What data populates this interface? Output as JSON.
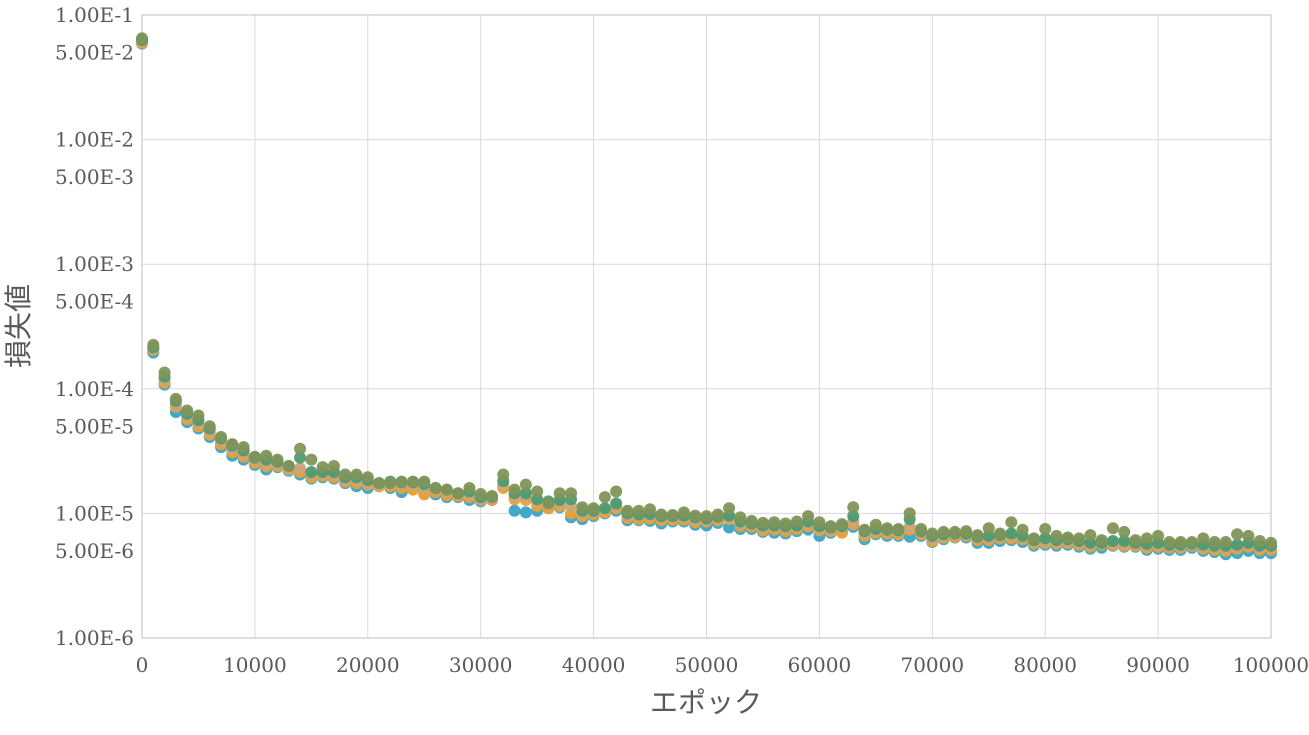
{
  "chart_data": {
    "type": "scatter",
    "title": "",
    "xlabel": "エポック",
    "ylabel": "損失値",
    "xlim": [
      0,
      100000
    ],
    "ylim": [
      1e-06,
      0.1
    ],
    "yscale": "log",
    "grid": true,
    "legend": "none",
    "x_ticks": [
      "0",
      "10000",
      "20000",
      "30000",
      "40000",
      "50000",
      "60000",
      "70000",
      "80000",
      "90000",
      "100000"
    ],
    "y_ticks": [
      {
        "value": 0.1,
        "label": "1.00E-1"
      },
      {
        "value": 0.05,
        "label": "5.00E-2"
      },
      {
        "value": 0.01,
        "label": "1.00E-2"
      },
      {
        "value": 0.005,
        "label": "5.00E-3"
      },
      {
        "value": 0.001,
        "label": "1.00E-3"
      },
      {
        "value": 0.0005,
        "label": "5.00E-4"
      },
      {
        "value": 0.0001,
        "label": "1.00E-4"
      },
      {
        "value": 5e-05,
        "label": "5.00E-5"
      },
      {
        "value": 1e-05,
        "label": "1.00E-5"
      },
      {
        "value": 5e-06,
        "label": "5.00E-6"
      },
      {
        "value": 1e-06,
        "label": "1.00E-6"
      }
    ],
    "x": [
      0,
      1000,
      2000,
      3000,
      4000,
      5000,
      6000,
      7000,
      8000,
      9000,
      10000,
      11000,
      12000,
      13000,
      14000,
      15000,
      16000,
      17000,
      18000,
      19000,
      20000,
      21000,
      22000,
      23000,
      24000,
      25000,
      26000,
      27000,
      28000,
      29000,
      30000,
      31000,
      32000,
      33000,
      34000,
      35000,
      36000,
      37000,
      38000,
      39000,
      40000,
      41000,
      42000,
      43000,
      44000,
      45000,
      46000,
      47000,
      48000,
      49000,
      50000,
      51000,
      52000,
      53000,
      54000,
      55000,
      56000,
      57000,
      58000,
      59000,
      60000,
      61000,
      62000,
      63000,
      64000,
      65000,
      66000,
      67000,
      68000,
      69000,
      70000,
      71000,
      72000,
      73000,
      74000,
      75000,
      76000,
      77000,
      78000,
      79000,
      80000,
      81000,
      82000,
      83000,
      84000,
      85000,
      86000,
      87000,
      88000,
      89000,
      90000,
      91000,
      92000,
      93000,
      94000,
      95000,
      96000,
      97000,
      98000,
      99000,
      100000
    ],
    "series": [
      {
        "color": "#3aa3c7",
        "values": [
          0.059,
          0.000195,
          0.000108,
          6.5e-05,
          5.4e-05,
          4.8e-05,
          4.1e-05,
          3.4e-05,
          2.9e-05,
          2.7e-05,
          2.45e-05,
          2.25e-05,
          2.35e-05,
          2.2e-05,
          2.05e-05,
          1.9e-05,
          1.95e-05,
          1.9e-05,
          1.75e-05,
          1.65e-05,
          1.6e-05,
          1.65e-05,
          1.6e-05,
          1.48e-05,
          1.58e-05,
          1.45e-05,
          1.42e-05,
          1.35e-05,
          1.35e-05,
          1.28e-05,
          1.25e-05,
          1.28e-05,
          1.65e-05,
          1.05e-05,
          1.02e-05,
          1.05e-05,
          1.1e-05,
          1.12e-05,
          9.3e-06,
          9e-06,
          9.5e-06,
          1e-05,
          1.05e-05,
          8.8e-06,
          8.8e-06,
          8.7e-06,
          8.3e-06,
          8.6e-06,
          8.6e-06,
          8.1e-06,
          8e-06,
          8.4e-06,
          7.7e-06,
          7.5e-06,
          7.5e-06,
          7.1e-06,
          7e-06,
          6.9e-06,
          7.2e-06,
          7.4e-06,
          6.6e-06,
          7e-06,
          7.2e-06,
          7.8e-06,
          6.2e-06,
          6.8e-06,
          6.6e-06,
          6.6e-06,
          6.5e-06,
          6.6e-06,
          5.9e-06,
          6.2e-06,
          6.4e-06,
          6.4e-06,
          5.8e-06,
          5.8e-06,
          6e-06,
          6.1e-06,
          5.9e-06,
          5.5e-06,
          5.6e-06,
          5.5e-06,
          5.6e-06,
          5.4e-06,
          5.2e-06,
          5.3e-06,
          5.5e-06,
          5.4e-06,
          5.4e-06,
          5.1e-06,
          5.2e-06,
          5.1e-06,
          5.1e-06,
          5.3e-06,
          5e-06,
          4.9e-06,
          4.7e-06,
          4.8e-06,
          5e-06,
          4.8e-06,
          4.8e-06
        ]
      },
      {
        "color": "#f0a030",
        "values": [
          0.06,
          0.000205,
          0.000112,
          7.2e-05,
          5.7e-05,
          5e-05,
          4.3e-05,
          3.6e-05,
          3.1e-05,
          2.85e-05,
          2.55e-05,
          2.4e-05,
          2.4e-05,
          2.25e-05,
          2.15e-05,
          1.95e-05,
          2e-05,
          1.95e-05,
          1.8e-05,
          1.75e-05,
          1.7e-05,
          1.65e-05,
          1.65e-05,
          1.6e-05,
          1.55e-05,
          1.42e-05,
          1.48e-05,
          1.4e-05,
          1.38e-05,
          1.35e-05,
          1.28e-05,
          1.28e-05,
          1.6e-05,
          1.3e-05,
          1.28e-05,
          1.15e-05,
          1.1e-05,
          1.15e-05,
          1e-05,
          9.5e-06,
          9.8e-06,
          1.02e-05,
          1.1e-05,
          9.2e-06,
          9e-06,
          9.1e-06,
          8.8e-06,
          8.9e-06,
          8.9e-06,
          8.5e-06,
          8.6e-06,
          8.8e-06,
          9e-06,
          7.9e-06,
          7.8e-06,
          7.3e-06,
          7.4e-06,
          7.2e-06,
          7.5e-06,
          7.9e-06,
          7.3e-06,
          7.2e-06,
          7e-06,
          8.2e-06,
          6.6e-06,
          7e-06,
          6.9e-06,
          6.8e-06,
          7.4e-06,
          6.8e-06,
          6e-06,
          6.4e-06,
          6.5e-06,
          6.6e-06,
          6.1e-06,
          6.1e-06,
          6.3e-06,
          6.3e-06,
          6.2e-06,
          5.7e-06,
          5.8e-06,
          5.7e-06,
          5.8e-06,
          5.6e-06,
          5.4e-06,
          5.6e-06,
          5.6e-06,
          5.5e-06,
          5.5e-06,
          5.3e-06,
          5.4e-06,
          5.3e-06,
          5.3e-06,
          5.5e-06,
          5.2e-06,
          5.1e-06,
          5e-06,
          5.2e-06,
          5.4e-06,
          5.1e-06,
          5.1e-06
        ]
      },
      {
        "color": "#c9a57a",
        "values": [
          0.062,
          0.00021,
          0.000118,
          7.5e-05,
          6e-05,
          5.3e-05,
          4.5e-05,
          3.8e-05,
          3.3e-05,
          3e-05,
          2.7e-05,
          2.55e-05,
          2.5e-05,
          2.3e-05,
          2.3e-05,
          2.05e-05,
          2.05e-05,
          2.05e-05,
          1.85e-05,
          1.85e-05,
          1.75e-05,
          1.7e-05,
          1.72e-05,
          1.7e-05,
          1.7e-05,
          1.6e-05,
          1.55e-05,
          1.5e-05,
          1.42e-05,
          1.42e-05,
          1.3e-05,
          1.32e-05,
          1.7e-05,
          1.38e-05,
          1.35e-05,
          1.25e-05,
          1.18e-05,
          1.2e-05,
          1.15e-05,
          1e-05,
          1.02e-05,
          1.08e-05,
          1.15e-05,
          9.6e-06,
          9.5e-06,
          9.6e-06,
          9.2e-06,
          9.3e-06,
          9.3e-06,
          8.9e-06,
          8.8e-06,
          9.2e-06,
          9.3e-06,
          8.2e-06,
          8.1e-06,
          7.7e-06,
          7.7e-06,
          7.6e-06,
          7.8e-06,
          8.3e-06,
          7.6e-06,
          7.4e-06,
          7.6e-06,
          8.6e-06,
          6.9e-06,
          7.3e-06,
          7.2e-06,
          7.1e-06,
          7.8e-06,
          7e-06,
          6.3e-06,
          6.6e-06,
          6.8e-06,
          6.8e-06,
          6.3e-06,
          6.3e-06,
          6.5e-06,
          6.6e-06,
          6.4e-06,
          5.9e-06,
          6e-06,
          5.9e-06,
          6e-06,
          5.8e-06,
          5.6e-06,
          5.7e-06,
          5.8e-06,
          5.7e-06,
          5.7e-06,
          5.5e-06,
          5.6e-06,
          5.4e-06,
          5.4e-06,
          5.6e-06,
          5.4e-06,
          5.3e-06,
          5.2e-06,
          5.4e-06,
          5.6e-06,
          5.3e-06,
          5.3e-06
        ]
      },
      {
        "color": "#4e9a72",
        "values": [
          0.063,
          0.000215,
          0.000125,
          8e-05,
          6.3e-05,
          5.6e-05,
          4.8e-05,
          4e-05,
          3.5e-05,
          3.2e-05,
          2.8e-05,
          2.7e-05,
          2.6e-05,
          2.4e-05,
          2.8e-05,
          2.15e-05,
          2.15e-05,
          2.15e-05,
          1.95e-05,
          1.95e-05,
          1.85e-05,
          1.75e-05,
          1.8e-05,
          1.78e-05,
          1.78e-05,
          1.72e-05,
          1.6e-05,
          1.55e-05,
          1.45e-05,
          1.5e-05,
          1.35e-05,
          1.35e-05,
          1.82e-05,
          1.45e-05,
          1.45e-05,
          1.3e-05,
          1.25e-05,
          1.28e-05,
          1.3e-05,
          1.05e-05,
          1.05e-05,
          1.1e-05,
          1.2e-05,
          1e-05,
          9.8e-06,
          9.9e-06,
          9.5e-06,
          9.5e-06,
          9.6e-06,
          9.3e-06,
          9.1e-06,
          9.4e-06,
          9.6e-06,
          8.6e-06,
          8.3e-06,
          8e-06,
          8e-06,
          7.9e-06,
          8e-06,
          8.6e-06,
          7.9e-06,
          7.7e-06,
          7.9e-06,
          9.5e-06,
          7.2e-06,
          7.5e-06,
          7.4e-06,
          7.3e-06,
          9e-06,
          7.2e-06,
          6.6e-06,
          6.8e-06,
          6.9e-06,
          6.9e-06,
          6.5e-06,
          6.6e-06,
          6.7e-06,
          6.9e-06,
          6.6e-06,
          6.1e-06,
          6.3e-06,
          6.1e-06,
          6.2e-06,
          6e-06,
          5.8e-06,
          5.8e-06,
          6e-06,
          6e-06,
          5.8e-06,
          5.7e-06,
          5.8e-06,
          5.6e-06,
          5.6e-06,
          5.7e-06,
          5.6e-06,
          5.5e-06,
          5.5e-06,
          5.6e-06,
          5.8e-06,
          5.5e-06,
          5.5e-06
        ]
      },
      {
        "color": "#80955a",
        "values": [
          0.065,
          0.000225,
          0.000135,
          8.3e-05,
          6.7e-05,
          6.1e-05,
          5e-05,
          4.1e-05,
          3.6e-05,
          3.4e-05,
          2.85e-05,
          2.9e-05,
          2.7e-05,
          2.4e-05,
          3.3e-05,
          2.7e-05,
          2.35e-05,
          2.4e-05,
          2.05e-05,
          2.05e-05,
          1.95e-05,
          1.75e-05,
          1.75e-05,
          1.8e-05,
          1.8e-05,
          1.8e-05,
          1.6e-05,
          1.55e-05,
          1.45e-05,
          1.6e-05,
          1.43e-05,
          1.38e-05,
          2.05e-05,
          1.55e-05,
          1.7e-05,
          1.5e-05,
          1.2e-05,
          1.45e-05,
          1.45e-05,
          1.12e-05,
          1.1e-05,
          1.35e-05,
          1.5e-05,
          1.05e-05,
          1.05e-05,
          1.08e-05,
          9.8e-06,
          9.7e-06,
          1.02e-05,
          9.6e-06,
          9.5e-06,
          9.8e-06,
          1.1e-05,
          9.3e-06,
          8.7e-06,
          8.4e-06,
          8.5e-06,
          8.3e-06,
          8.6e-06,
          9.5e-06,
          8.5e-06,
          7.9e-06,
          8.2e-06,
          1.12e-05,
          7.4e-06,
          8.1e-06,
          7.6e-06,
          7.5e-06,
          1e-05,
          7.5e-06,
          6.9e-06,
          7.1e-06,
          7.1e-06,
          7.2e-06,
          6.7e-06,
          7.6e-06,
          6.9e-06,
          8.5e-06,
          7.4e-06,
          6.3e-06,
          7.5e-06,
          6.6e-06,
          6.4e-06,
          6.3e-06,
          6.7e-06,
          6.1e-06,
          7.6e-06,
          7.1e-06,
          6.1e-06,
          6.3e-06,
          6.6e-06,
          5.9e-06,
          5.9e-06,
          5.9e-06,
          6.3e-06,
          5.9e-06,
          5.9e-06,
          6.8e-06,
          6.6e-06,
          6e-06,
          5.8e-06
        ]
      }
    ]
  }
}
